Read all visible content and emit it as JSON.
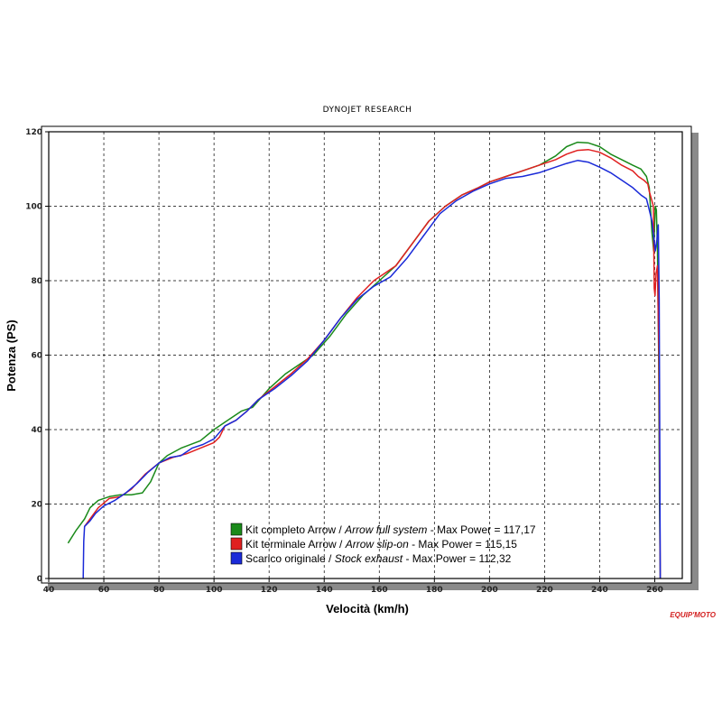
{
  "chart_data": {
    "type": "line",
    "title": "DYNOJET RESEARCH",
    "xlabel": "Velocità (km/h)",
    "ylabel": "Potenza (PS)",
    "xlim": [
      40,
      270
    ],
    "ylim": [
      0,
      120
    ],
    "xticks": [
      40,
      60,
      80,
      100,
      120,
      140,
      160,
      180,
      200,
      220,
      240,
      260
    ],
    "yticks": [
      0,
      20,
      40,
      60,
      80,
      100,
      120
    ],
    "grid": true,
    "legend_position": "bottom-center",
    "series": [
      {
        "name": "Kit completo Arrow",
        "name_en": "Arrow full system",
        "max_label": "Max Power = 117,17",
        "color": "#1a8a1a",
        "points": [
          [
            47,
            9.5
          ],
          [
            50,
            13
          ],
          [
            53,
            16
          ],
          [
            55,
            19
          ],
          [
            58,
            21
          ],
          [
            62,
            22
          ],
          [
            66,
            22.5
          ],
          [
            70,
            22.5
          ],
          [
            74,
            23
          ],
          [
            77,
            26
          ],
          [
            80,
            31
          ],
          [
            83,
            33
          ],
          [
            88,
            35
          ],
          [
            95,
            37
          ],
          [
            100,
            40
          ],
          [
            106,
            43
          ],
          [
            110,
            45
          ],
          [
            114,
            46
          ],
          [
            120,
            51
          ],
          [
            126,
            55
          ],
          [
            130,
            57
          ],
          [
            136,
            60
          ],
          [
            142,
            65
          ],
          [
            148,
            71
          ],
          [
            154,
            76
          ],
          [
            160,
            80
          ],
          [
            166,
            84
          ],
          [
            172,
            90
          ],
          [
            178,
            96
          ],
          [
            184,
            100
          ],
          [
            190,
            103
          ],
          [
            196,
            105
          ],
          [
            200,
            106.5
          ],
          [
            206,
            108
          ],
          [
            212,
            109.5
          ],
          [
            218,
            111
          ],
          [
            224,
            113.5
          ],
          [
            228,
            116
          ],
          [
            232,
            117.2
          ],
          [
            236,
            117
          ],
          [
            240,
            116
          ],
          [
            244,
            114
          ],
          [
            248,
            112.5
          ],
          [
            252,
            111
          ],
          [
            255,
            110
          ],
          [
            257,
            108
          ],
          [
            258,
            105
          ],
          [
            259,
            93
          ],
          [
            259.6,
            88
          ],
          [
            260.2,
            100
          ],
          [
            260.6,
            99
          ],
          [
            261,
            88
          ],
          [
            261.4,
            60
          ],
          [
            261.7,
            20
          ],
          [
            262,
            0
          ]
        ]
      },
      {
        "name": "Kit terminale Arrow",
        "name_en": "Arrow slip-on",
        "max_label": "Max Power = 115,15",
        "color": "#e02020",
        "points": [
          [
            53,
            14
          ],
          [
            55,
            16
          ],
          [
            58,
            19
          ],
          [
            62,
            21.5
          ],
          [
            66,
            22
          ],
          [
            70,
            24
          ],
          [
            75,
            28
          ],
          [
            80,
            31
          ],
          [
            85,
            32.5
          ],
          [
            90,
            33.5
          ],
          [
            95,
            35
          ],
          [
            100,
            36.5
          ],
          [
            102,
            38
          ],
          [
            104,
            41
          ],
          [
            108,
            42.5
          ],
          [
            112,
            45
          ],
          [
            116,
            48
          ],
          [
            122,
            51.5
          ],
          [
            128,
            55
          ],
          [
            134,
            59
          ],
          [
            140,
            64
          ],
          [
            146,
            70
          ],
          [
            152,
            75.5
          ],
          [
            158,
            80
          ],
          [
            162,
            82
          ],
          [
            166,
            84
          ],
          [
            172,
            90
          ],
          [
            178,
            96
          ],
          [
            184,
            100
          ],
          [
            190,
            103
          ],
          [
            196,
            105
          ],
          [
            200,
            106.5
          ],
          [
            206,
            108
          ],
          [
            212,
            109.5
          ],
          [
            218,
            111
          ],
          [
            224,
            112.5
          ],
          [
            228,
            114
          ],
          [
            232,
            115
          ],
          [
            236,
            115.2
          ],
          [
            240,
            114.5
          ],
          [
            244,
            113
          ],
          [
            248,
            111
          ],
          [
            252,
            109.5
          ],
          [
            254,
            108
          ],
          [
            256,
            107
          ],
          [
            257.5,
            106
          ],
          [
            258,
            104
          ],
          [
            259.5,
            100
          ],
          [
            259.8,
            78
          ],
          [
            260.1,
            76
          ],
          [
            260.5,
            82
          ],
          [
            261,
            84
          ],
          [
            261.5,
            60
          ],
          [
            262,
            0
          ]
        ]
      },
      {
        "name": "Scarico originale",
        "name_en": "Stock exhaust",
        "max_label": "Max Power = 112,32",
        "color": "#1a2ad8",
        "points": [
          [
            52.5,
            0
          ],
          [
            52.7,
            10
          ],
          [
            53,
            14
          ],
          [
            55,
            15.5
          ],
          [
            57,
            17.5
          ],
          [
            60,
            19.5
          ],
          [
            64,
            21
          ],
          [
            68,
            23
          ],
          [
            72,
            25.5
          ],
          [
            76,
            28.5
          ],
          [
            80,
            31
          ],
          [
            84,
            32.5
          ],
          [
            88,
            33
          ],
          [
            92,
            35
          ],
          [
            96,
            36
          ],
          [
            100,
            37.5
          ],
          [
            104,
            41
          ],
          [
            108,
            42.5
          ],
          [
            112,
            45
          ],
          [
            116,
            48
          ],
          [
            122,
            51
          ],
          [
            128,
            54.5
          ],
          [
            134,
            58.5
          ],
          [
            140,
            64
          ],
          [
            146,
            70
          ],
          [
            152,
            75
          ],
          [
            158,
            78.5
          ],
          [
            164,
            81
          ],
          [
            170,
            86
          ],
          [
            176,
            92
          ],
          [
            182,
            98
          ],
          [
            188,
            101.5
          ],
          [
            194,
            104
          ],
          [
            200,
            106
          ],
          [
            206,
            107.5
          ],
          [
            212,
            108
          ],
          [
            218,
            109
          ],
          [
            224,
            110.5
          ],
          [
            228,
            111.5
          ],
          [
            232,
            112.3
          ],
          [
            236,
            111.8
          ],
          [
            240,
            110.5
          ],
          [
            244,
            109
          ],
          [
            248,
            107
          ],
          [
            252,
            105
          ],
          [
            255,
            103
          ],
          [
            257,
            102
          ],
          [
            258,
            99
          ],
          [
            259,
            96
          ],
          [
            259.6,
            92
          ],
          [
            260.2,
            88
          ],
          [
            260.8,
            91
          ],
          [
            261.3,
            95
          ],
          [
            261.6,
            75
          ],
          [
            261.8,
            40
          ],
          [
            262,
            0
          ]
        ]
      }
    ]
  },
  "branding": {
    "logo": "EQUIP'MOTO"
  }
}
